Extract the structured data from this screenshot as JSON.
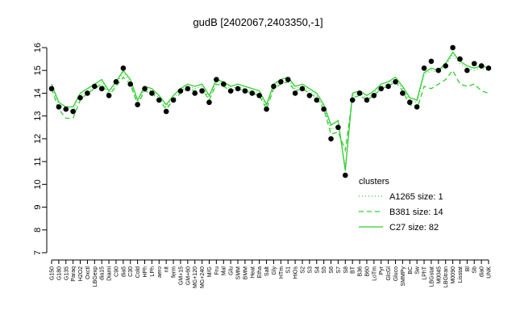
{
  "chart_data": {
    "type": "line",
    "title": "gudB [2402067,2403350,-1]",
    "categories": [
      "G150",
      "G180",
      "G135",
      "Paraq",
      "H2O2",
      "Oxctl",
      "LBGexp",
      "dia15",
      "Diami",
      "C90",
      "dia5",
      "C30",
      "Cold",
      "HPh",
      "LPh",
      "aero",
      "nit",
      "ferm",
      "GM+15",
      "GM+60",
      "MG+120",
      "MG+240",
      "M/G",
      "Fru",
      "Mal",
      "Glu",
      "SMM",
      "BMM",
      "Heat",
      "Etha",
      "Salt",
      "Gly",
      "HTm",
      "S1",
      "HiOs",
      "S2",
      "S3",
      "S4",
      "S5",
      "S6",
      "S7",
      "S8",
      "BT",
      "B36",
      "B60",
      "LoTm",
      "Pyr",
      "GlcGl",
      "Gluco",
      "SMMPy",
      "BC",
      "Sw",
      "LPhT",
      "LBGstat",
      "M0045",
      "LBGtran",
      "M0090",
      "Lisstat",
      "Bl",
      "Sb",
      "dia0",
      "UNK"
    ],
    "series": [
      {
        "name": "A1265 size: 1",
        "color": "#33cc33",
        "dash": "dotted",
        "values": [
          14.3,
          13.5,
          13.3,
          13.2,
          13.9,
          14.1,
          14.3,
          14.5,
          14.0,
          14.4,
          14.9,
          14.5,
          13.6,
          14.2,
          14.1,
          13.8,
          13.4,
          13.8,
          14.1,
          14.3,
          14.2,
          14.3,
          13.8,
          14.5,
          14.4,
          14.2,
          14.3,
          14.2,
          14.1,
          14.0,
          13.4,
          14.3,
          14.5,
          14.6,
          14.2,
          14.3,
          14.1,
          13.9,
          13.4,
          12.4,
          12.6,
          10.8,
          13.9,
          14.0,
          13.8,
          14.0,
          14.3,
          14.4,
          14.6,
          14.2,
          13.7,
          13.6,
          14.8,
          15.0,
          14.9,
          15.2,
          15.7,
          15.3,
          15.1,
          15.0,
          15.1,
          15.0
        ]
      },
      {
        "name": "B381 size: 14",
        "color": "#33cc33",
        "dash": "dashed",
        "values": [
          14.2,
          13.3,
          12.9,
          12.9,
          13.7,
          14.0,
          14.2,
          14.4,
          13.9,
          14.3,
          14.7,
          14.4,
          13.5,
          14.1,
          14.0,
          13.7,
          13.3,
          13.7,
          14.0,
          14.2,
          14.1,
          14.2,
          13.7,
          14.4,
          14.3,
          14.1,
          14.2,
          14.1,
          14.0,
          13.9,
          13.3,
          14.2,
          14.4,
          14.5,
          14.1,
          14.2,
          14.0,
          13.8,
          13.3,
          12.2,
          12.3,
          11.5,
          13.8,
          13.9,
          13.7,
          13.9,
          14.2,
          14.3,
          14.5,
          14.1,
          13.5,
          13.3,
          14.3,
          14.2,
          14.4,
          14.6,
          15.0,
          14.4,
          14.3,
          14.4,
          14.1,
          14.0
        ]
      },
      {
        "name": "C27 size: 82",
        "color": "#33cc33",
        "dash": "solid",
        "values": [
          14.4,
          13.6,
          13.4,
          13.4,
          14.0,
          14.2,
          14.4,
          14.6,
          14.1,
          14.5,
          15.0,
          14.6,
          13.7,
          14.3,
          14.2,
          13.9,
          13.5,
          13.9,
          14.2,
          14.4,
          14.3,
          14.4,
          13.9,
          14.6,
          14.5,
          14.3,
          14.4,
          14.3,
          14.2,
          14.1,
          13.5,
          14.4,
          14.6,
          14.7,
          14.3,
          14.4,
          14.2,
          14.0,
          13.5,
          12.6,
          12.8,
          10.6,
          14.0,
          14.1,
          13.9,
          14.1,
          14.4,
          14.5,
          14.7,
          14.3,
          13.8,
          13.7,
          14.9,
          15.1,
          15.0,
          15.3,
          15.8,
          15.4,
          15.2,
          15.1,
          15.2,
          15.1
        ]
      }
    ],
    "points": {
      "color": "#000000",
      "values": [
        14.2,
        13.4,
        13.3,
        13.2,
        13.8,
        14.0,
        14.3,
        14.2,
        13.9,
        14.5,
        15.1,
        14.4,
        13.5,
        14.2,
        14.0,
        13.7,
        13.2,
        13.7,
        14.1,
        14.2,
        14.0,
        14.1,
        13.6,
        14.6,
        14.4,
        14.1,
        14.2,
        14.1,
        14.0,
        13.9,
        13.3,
        14.3,
        14.5,
        14.6,
        14.0,
        14.2,
        13.9,
        13.7,
        13.3,
        12.0,
        12.5,
        10.4,
        13.7,
        14.0,
        13.7,
        13.9,
        14.2,
        14.3,
        14.5,
        14.0,
        13.6,
        13.4,
        15.1,
        15.4,
        15.0,
        15.2,
        16.0,
        15.5,
        15.0,
        15.3,
        15.2,
        15.1
      ]
    },
    "ylim": [
      7,
      16
    ],
    "yticks": [
      7,
      8,
      9,
      10,
      11,
      12,
      13,
      14,
      15,
      16
    ],
    "legend_title": "clusters",
    "legend": "right"
  }
}
